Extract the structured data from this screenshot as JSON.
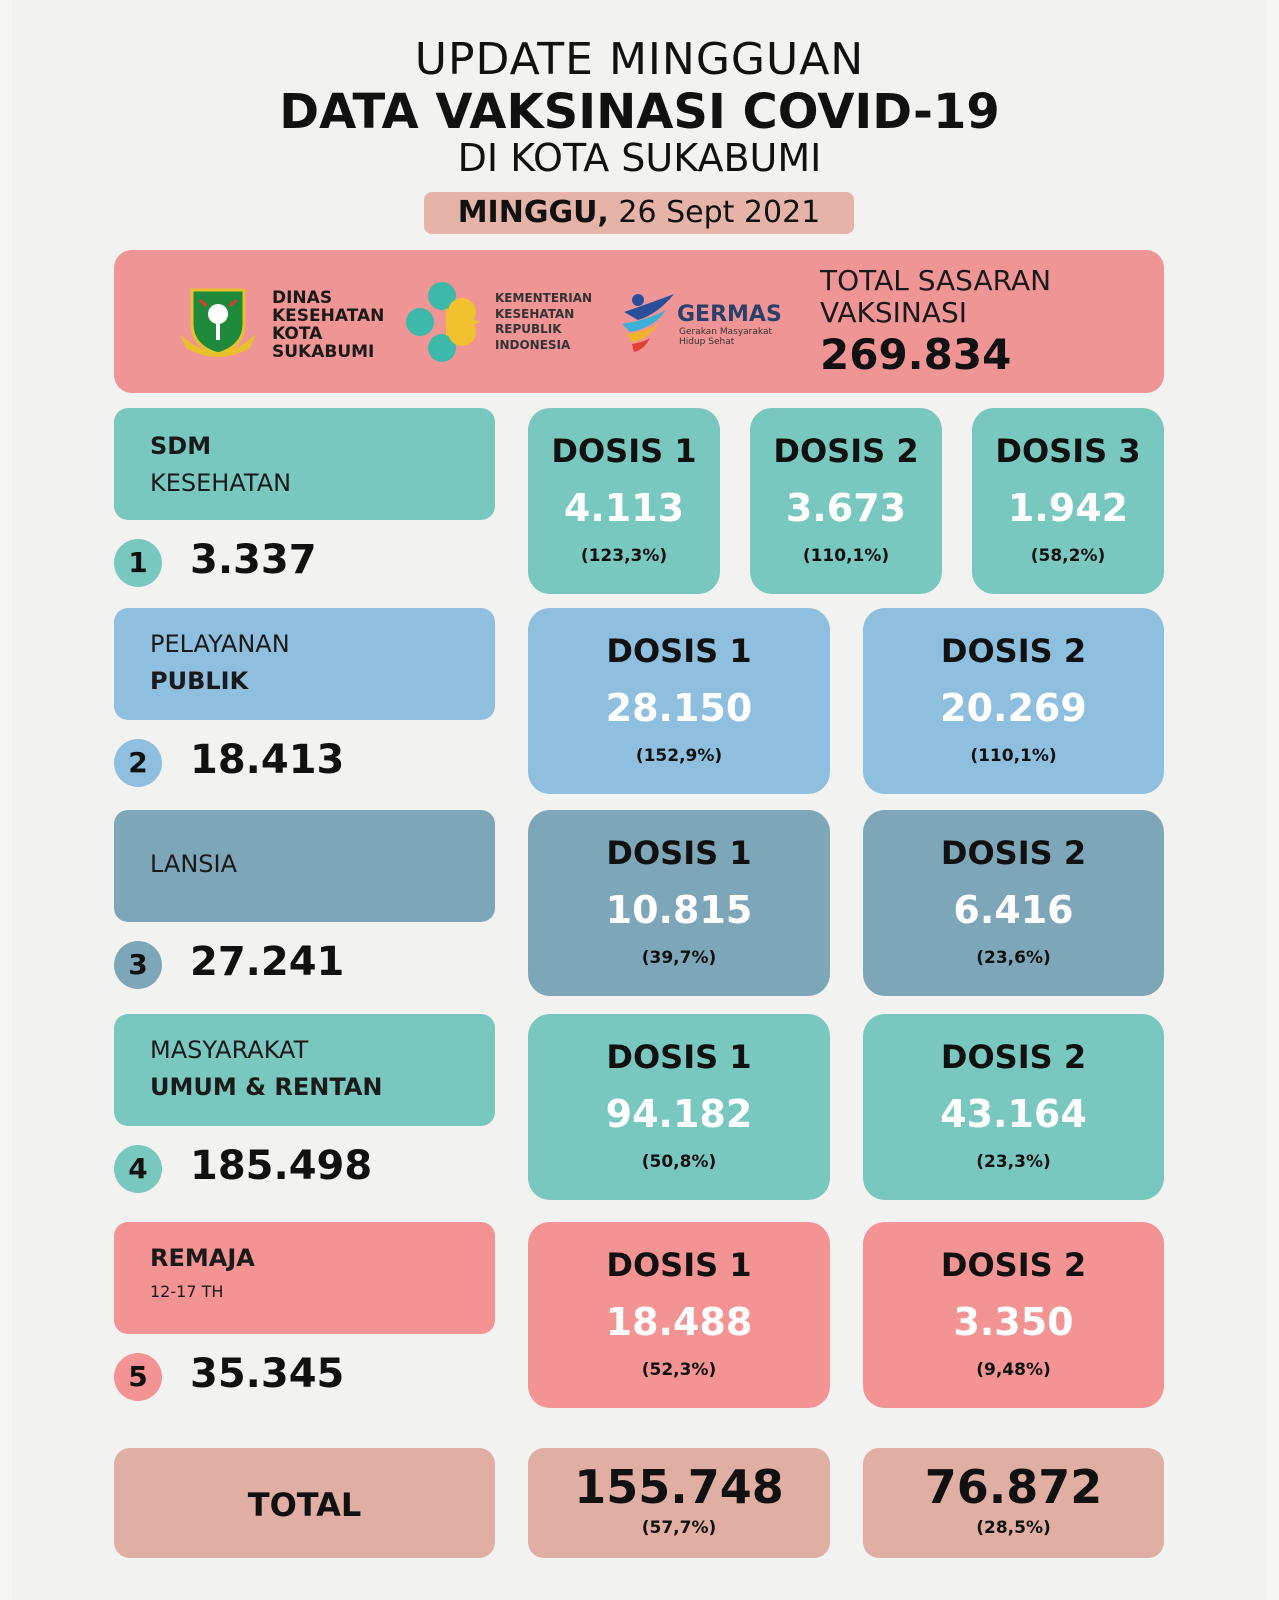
{
  "header": {
    "line1": "UPDATE MINGGUAN",
    "line2": "DATA VAKSINASI COVID-19",
    "line3": "DI KOTA SUKABUMI",
    "date_day": "MINGGU,",
    "date_text": " 26 Sept 2021"
  },
  "banner": {
    "dinas": [
      "DINAS",
      "KESEHATAN",
      "KOTA",
      "SUKABUMI"
    ],
    "kemenkes": [
      "KEMENTERIAN",
      "KESEHATAN",
      "REPUBLIK",
      "INDONESIA"
    ],
    "germas_name": "GERMAS",
    "germas_sub": [
      "Gerakan Masyarakat",
      "Hidup Sehat"
    ],
    "target_label": [
      "TOTAL SASARAN",
      "VAKSINASI"
    ],
    "target_value": "269.834"
  },
  "categories": [
    {
      "num": "1",
      "line1": "SDM",
      "line2": "KESEHATAN",
      "count": "3.337",
      "doses": [
        {
          "label": "DOSIS 1",
          "value": "4.113",
          "pct": "(123,3%)"
        },
        {
          "label": "DOSIS 2",
          "value": "3.673",
          "pct": "(110,1%)"
        },
        {
          "label": "DOSIS 3",
          "value": "1.942",
          "pct": "(58,2%)"
        }
      ]
    },
    {
      "num": "2",
      "line1": "PELAYANAN",
      "line2": "PUBLIK",
      "count": "18.413",
      "doses": [
        {
          "label": "DOSIS 1",
          "value": "28.150",
          "pct": "(152,9%)"
        },
        {
          "label": "DOSIS 2",
          "value": "20.269",
          "pct": "(110,1%)"
        }
      ]
    },
    {
      "num": "3",
      "line1": "LANSIA",
      "line2": "",
      "count": "27.241",
      "doses": [
        {
          "label": "DOSIS 1",
          "value": "10.815",
          "pct": "(39,7%)"
        },
        {
          "label": "DOSIS 2",
          "value": "6.416",
          "pct": "(23,6%)"
        }
      ]
    },
    {
      "num": "4",
      "line1": "MASYARAKAT",
      "line2": "UMUM & RENTAN",
      "count": "185.498",
      "doses": [
        {
          "label": "DOSIS 1",
          "value": "94.182",
          "pct": "(50,8%)"
        },
        {
          "label": "DOSIS 2",
          "value": "43.164",
          "pct": "(23,3%)"
        }
      ]
    },
    {
      "num": "5",
      "line1": "REMAJA",
      "line2": "12-17 TH",
      "count": "35.345",
      "doses": [
        {
          "label": "DOSIS 1",
          "value": "18.488",
          "pct": "(52,3%)"
        },
        {
          "label": "DOSIS 2",
          "value": "3.350",
          "pct": "(9,48%)"
        }
      ]
    }
  ],
  "total": {
    "label": "TOTAL",
    "dose1_value": "155.748",
    "dose1_pct": "(57,7%)",
    "dose2_value": "76.872",
    "dose2_pct": "(28,5%)"
  },
  "colors": {
    "teal": "#79c8bf",
    "blue": "#8fbfdf",
    "slate": "#7ea6b9",
    "pink": "#f39393",
    "banner": "#f09595",
    "total": "#e0aea3"
  }
}
